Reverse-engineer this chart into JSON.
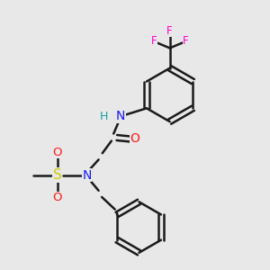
{
  "background_color": "#e8e8e8",
  "bond_color": "#1a1a1a",
  "bond_width": 1.8,
  "colors": {
    "N": "#1919ff",
    "O": "#ff1919",
    "S": "#cccc00",
    "F": "#ff00cc",
    "H_text": "#19a0a0",
    "C": "#1a1a1a"
  },
  "figsize": [
    3.0,
    3.0
  ],
  "dpi": 100
}
